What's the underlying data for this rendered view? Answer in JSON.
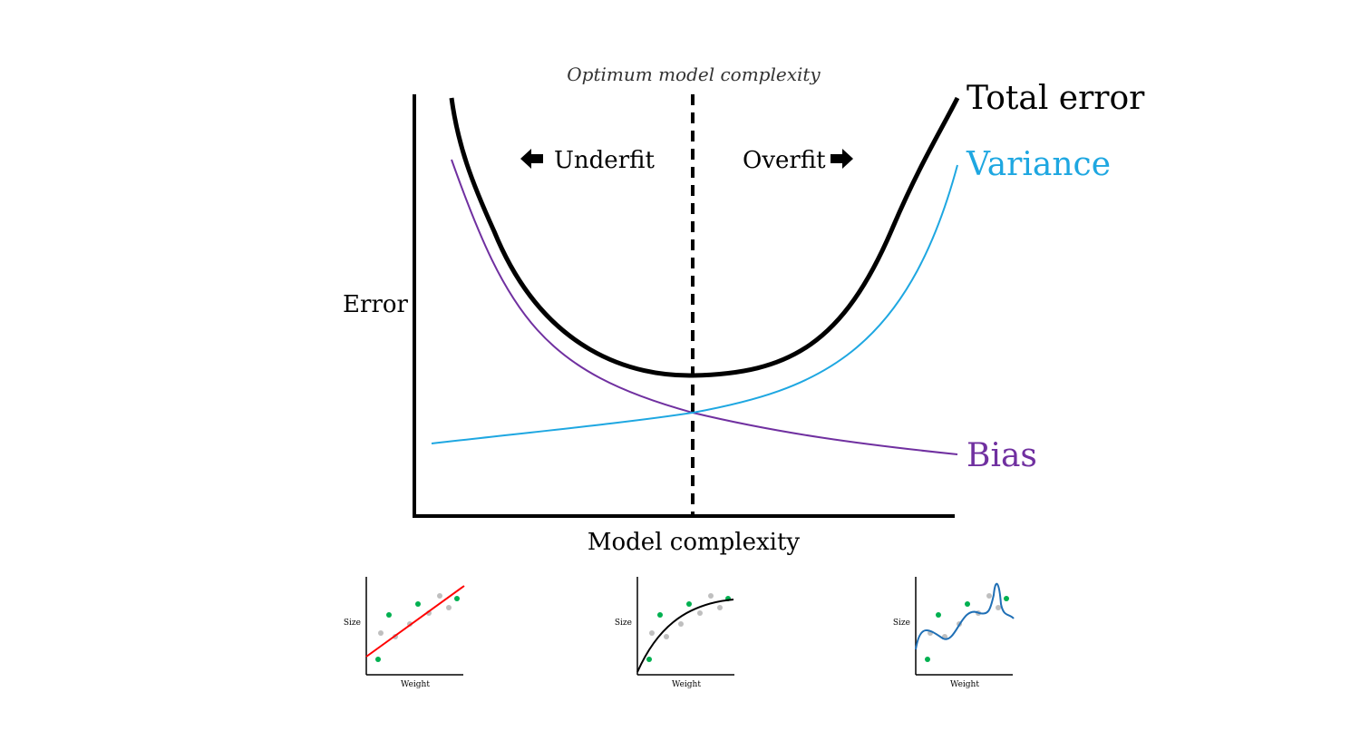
{
  "main": {
    "optimum_label": "Optimum model complexity",
    "y_axis_label": "Error",
    "x_axis_label": "Model complexity",
    "underfit_label": "Underfit",
    "overfit_label": "Overfit",
    "curves": {
      "total": {
        "label": "Total error",
        "color": "#000000"
      },
      "variance": {
        "label": "Variance",
        "color": "#1ea7e1"
      },
      "bias": {
        "label": "Bias",
        "color": "#7030a0"
      }
    }
  },
  "examples": [
    {
      "y_label": "Size",
      "x_label": "Weight",
      "fit_color": "#ff0000",
      "fit": "linear"
    },
    {
      "y_label": "Size",
      "x_label": "Weight",
      "fit_color": "#000000",
      "fit": "curve"
    },
    {
      "y_label": "Size",
      "x_label": "Weight",
      "fit_color": "#1f6fb5",
      "fit": "wiggly"
    }
  ],
  "point_colors": {
    "train": "#00b050",
    "test": "#bfbfbf"
  }
}
